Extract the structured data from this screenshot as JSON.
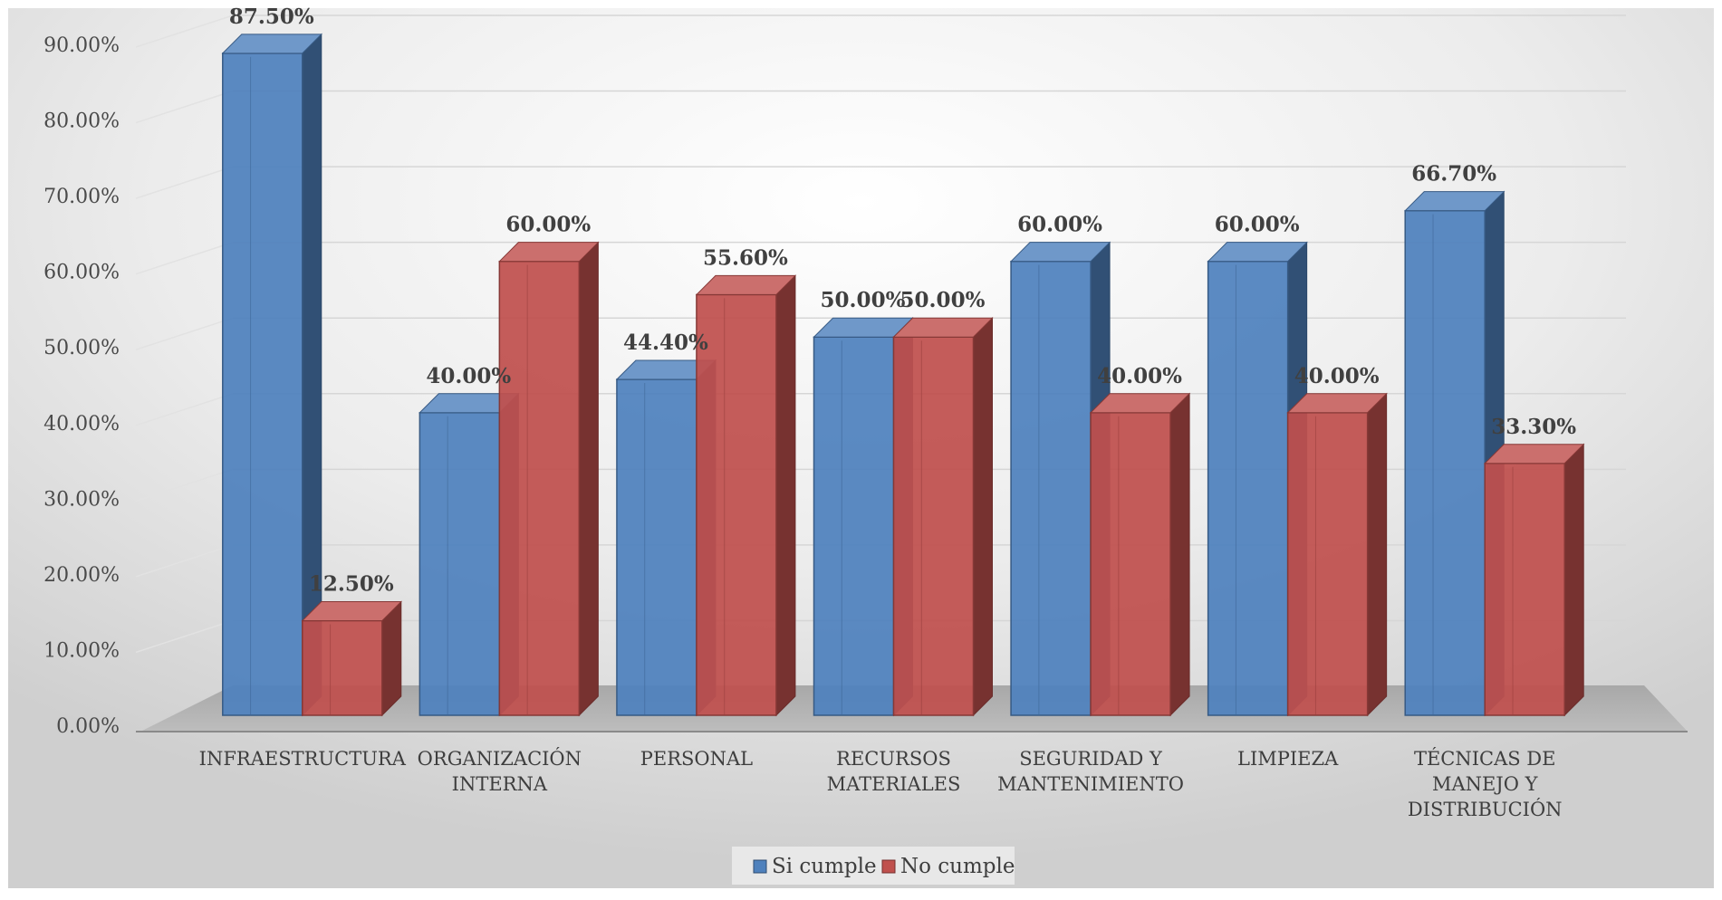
{
  "chart_data": {
    "type": "bar",
    "categories": [
      [
        "INFRAESTRUCTURA"
      ],
      [
        "ORGANIZACIÓN",
        "INTERNA"
      ],
      [
        "PERSONAL"
      ],
      [
        "RECURSOS",
        "MATERIALES"
      ],
      [
        "SEGURIDAD Y",
        "MANTENIMIENTO"
      ],
      [
        "LIMPIEZA"
      ],
      [
        "TÉCNICAS DE",
        "MANEJO Y",
        "DISTRIBUCIÓN"
      ]
    ],
    "series": [
      {
        "name": "Si cumple",
        "color": "#4f81bd",
        "values": [
          87.5,
          40.0,
          44.4,
          50.0,
          60.0,
          60.0,
          66.7
        ],
        "labels": [
          "87.50%",
          "40.00%",
          "44.40%",
          "50.00%",
          "60.00%",
          "60.00%",
          "66.70%"
        ]
      },
      {
        "name": "No cumple",
        "color": "#c0504d",
        "values": [
          12.5,
          60.0,
          55.6,
          50.0,
          40.0,
          40.0,
          33.3
        ],
        "labels": [
          "12.50%",
          "60.00%",
          "55.60%",
          "50.00%",
          "40.00%",
          "40.00%",
          "33.30%"
        ]
      }
    ],
    "yticks": [
      0,
      10,
      20,
      30,
      40,
      50,
      60,
      70,
      80,
      90
    ],
    "ytick_labels": [
      "0.00%",
      "10.00%",
      "20.00%",
      "30.00%",
      "40.00%",
      "50.00%",
      "60.00%",
      "70.00%",
      "80.00%",
      "90.00%"
    ],
    "ylim": [
      0,
      90
    ],
    "grid": true,
    "legend_position": "bottom-center",
    "style": "3d-clustered-column"
  }
}
